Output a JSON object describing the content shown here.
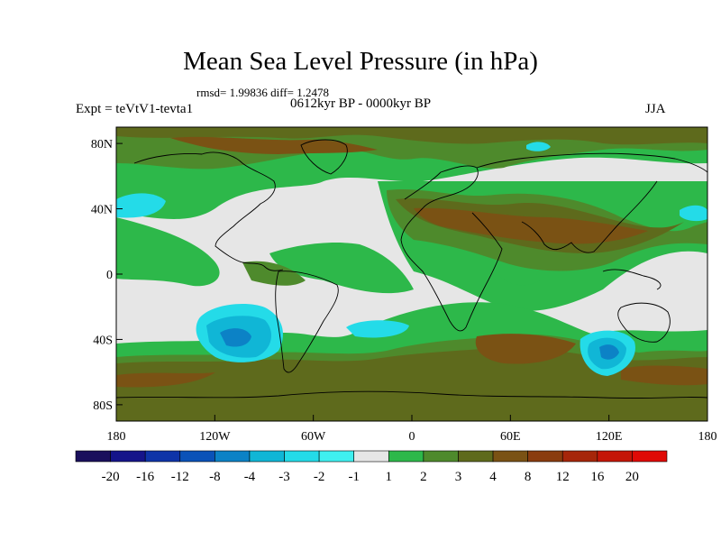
{
  "title": "Mean Sea Level Pressure (in hPa)",
  "stats": "rmsd= 1.99836 diff= 1.2478",
  "period": "0612kyr BP - 0000kyr BP",
  "experiment": "Expt = teVtV1-tevta1",
  "season": "JJA",
  "map": {
    "lat_ticks": [
      {
        "value": 80,
        "label": "80N"
      },
      {
        "value": 40,
        "label": "40N"
      },
      {
        "value": 0,
        "label": "0"
      },
      {
        "value": -40,
        "label": "40S"
      },
      {
        "value": -80,
        "label": "80S"
      }
    ],
    "lon_ticks": [
      {
        "value": -180,
        "label": "180"
      },
      {
        "value": -120,
        "label": "120W"
      },
      {
        "value": -60,
        "label": "60W"
      },
      {
        "value": 0,
        "label": "0"
      },
      {
        "value": 60,
        "label": "60E"
      },
      {
        "value": 120,
        "label": "120E"
      },
      {
        "value": 180,
        "label": "180"
      }
    ],
    "lat_range": [
      -90,
      90
    ],
    "lon_range": [
      -180,
      180
    ],
    "colors": {
      "neutral": "#e6e6e6",
      "pos_2": "#2db84a",
      "pos_3": "#4e8a2c",
      "pos_4": "#5e6a1c",
      "pos_8": "#7a5214",
      "neg_2": "#24dbe8",
      "neg_3": "#10b6d6",
      "neg_4": "#0c82c6",
      "coast": "#000000"
    }
  },
  "colorbar": {
    "labels": [
      "-20",
      "-16",
      "-12",
      "-8",
      "-4",
      "-3",
      "-2",
      "-1",
      "1",
      "2",
      "3",
      "4",
      "8",
      "12",
      "16",
      "20"
    ],
    "colors": [
      "#1a0f5c",
      "#15148a",
      "#0e34a8",
      "#0a52b8",
      "#0c82c6",
      "#10b6d6",
      "#24dbe8",
      "#3ff0f0",
      "#e6e6e6",
      "#2db84a",
      "#4e8a2c",
      "#5e6a1c",
      "#7a5214",
      "#8a3c0e",
      "#a6260a",
      "#c41608",
      "#e00a06"
    ]
  }
}
